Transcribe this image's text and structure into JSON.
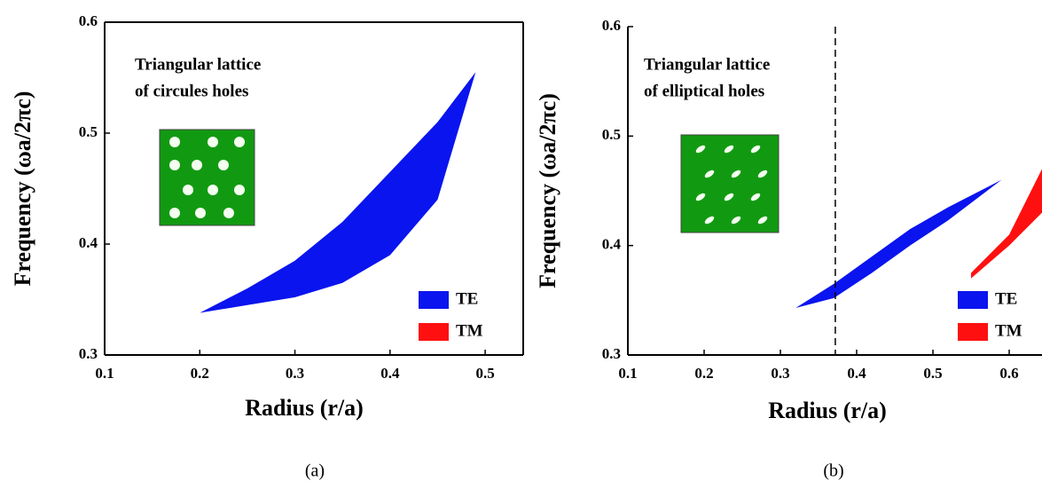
{
  "chart_data": [
    {
      "type": "range-area",
      "caption": "(a)",
      "x_label": "Radius (r/a)",
      "y_label": "Frequency (ωa/2πc)",
      "annotation": [
        "Triangular lattice",
        "of circules holes"
      ],
      "xlim": [
        0.1,
        0.54
      ],
      "ylim": [
        0.3,
        0.6
      ],
      "xticks": [
        0.1,
        0.2,
        0.3,
        0.4,
        0.5
      ],
      "yticks": [
        0.3,
        0.4,
        0.5,
        0.6
      ],
      "legend": "lower right",
      "series": [
        {
          "name": "TE",
          "color": "#0a14ee",
          "x": [
            0.2,
            0.25,
            0.3,
            0.35,
            0.4,
            0.45,
            0.49
          ],
          "low": [
            0.338,
            0.345,
            0.352,
            0.365,
            0.39,
            0.44,
            0.555
          ],
          "high": [
            0.338,
            0.36,
            0.385,
            0.42,
            0.465,
            0.51,
            0.555
          ]
        },
        {
          "name": "TM",
          "color": "#ff1010",
          "x": [],
          "low": [],
          "high": []
        }
      ]
    },
    {
      "type": "range-area",
      "caption": "(b)",
      "x_label": "Radius (r/a)",
      "y_label": "Frequency (ωa/2πc)",
      "annotation": [
        "Triangular lattice",
        "of elliptical holes"
      ],
      "xlim": [
        0.1,
        0.643
      ],
      "ylim": [
        0.3,
        0.6
      ],
      "xticks": [
        0.1,
        0.2,
        0.3,
        0.4,
        0.5,
        0.6
      ],
      "yticks": [
        0.3,
        0.4,
        0.5,
        0.6
      ],
      "vline": 0.372,
      "legend": "lower right",
      "series": [
        {
          "name": "TE",
          "color": "#0a14ee",
          "x": [
            0.32,
            0.37,
            0.42,
            0.47,
            0.52,
            0.59
          ],
          "low": [
            0.343,
            0.352,
            0.375,
            0.4,
            0.423,
            0.46
          ],
          "high": [
            0.343,
            0.365,
            0.39,
            0.415,
            0.435,
            0.46
          ]
        },
        {
          "name": "TM",
          "color": "#ff1010",
          "x": [
            0.55,
            0.6,
            0.643
          ],
          "low": [
            0.37,
            0.4,
            0.43
          ],
          "high": [
            0.375,
            0.41,
            0.47
          ]
        }
      ]
    }
  ]
}
